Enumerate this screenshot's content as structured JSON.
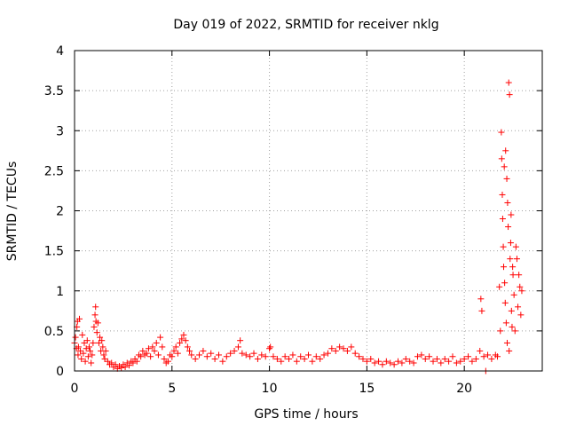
{
  "chart_data": {
    "type": "scatter",
    "title": "Day 019 of 2022, SRMTID for receiver nklg",
    "xlabel": "GPS time / hours",
    "ylabel": "SRMTID / TECUs",
    "xlim": [
      0,
      24
    ],
    "ylim": [
      0,
      4
    ],
    "xticks": [
      0,
      5,
      10,
      15,
      20
    ],
    "xtick_labels": [
      "0",
      "5",
      "10",
      "15",
      "20"
    ],
    "yticks": [
      0,
      0.5,
      1,
      1.5,
      2,
      2.5,
      3,
      3.5,
      4
    ],
    "ytick_labels": [
      "0",
      "0.5",
      "1",
      "1.5",
      "2",
      "2.5",
      "3",
      "3.5",
      "4"
    ],
    "grid": true,
    "marker": "+",
    "marker_color": "#ff0000",
    "series": [
      {
        "name": "SRMTID",
        "points": [
          [
            0.0,
            0.35
          ],
          [
            0.05,
            0.42
          ],
          [
            0.1,
            0.28
          ],
          [
            0.12,
            0.55
          ],
          [
            0.15,
            0.62
          ],
          [
            0.18,
            0.2
          ],
          [
            0.2,
            0.3
          ],
          [
            0.25,
            0.65
          ],
          [
            0.3,
            0.25
          ],
          [
            0.35,
            0.15
          ],
          [
            0.4,
            0.45
          ],
          [
            0.45,
            0.22
          ],
          [
            0.5,
            0.35
          ],
          [
            0.55,
            0.12
          ],
          [
            0.6,
            0.28
          ],
          [
            0.65,
            0.38
          ],
          [
            0.7,
            0.18
          ],
          [
            0.75,
            0.3
          ],
          [
            0.8,
            0.25
          ],
          [
            0.85,
            0.1
          ],
          [
            0.9,
            0.2
          ],
          [
            0.95,
            0.35
          ],
          [
            1.0,
            0.55
          ],
          [
            1.05,
            0.7
          ],
          [
            1.08,
            0.8
          ],
          [
            1.1,
            0.62
          ],
          [
            1.15,
            0.48
          ],
          [
            1.2,
            0.6
          ],
          [
            1.25,
            0.35
          ],
          [
            1.3,
            0.42
          ],
          [
            1.35,
            0.25
          ],
          [
            1.4,
            0.38
          ],
          [
            1.45,
            0.3
          ],
          [
            1.5,
            0.2
          ],
          [
            1.55,
            0.15
          ],
          [
            1.6,
            0.25
          ],
          [
            1.7,
            0.12
          ],
          [
            1.8,
            0.08
          ],
          [
            1.9,
            0.1
          ],
          [
            2.0,
            0.05
          ],
          [
            2.1,
            0.08
          ],
          [
            2.2,
            0.03
          ],
          [
            2.3,
            0.06
          ],
          [
            2.4,
            0.04
          ],
          [
            2.5,
            0.08
          ],
          [
            2.6,
            0.05
          ],
          [
            2.7,
            0.1
          ],
          [
            2.8,
            0.07
          ],
          [
            2.9,
            0.12
          ],
          [
            3.0,
            0.1
          ],
          [
            3.1,
            0.15
          ],
          [
            3.2,
            0.12
          ],
          [
            3.3,
            0.2
          ],
          [
            3.4,
            0.18
          ],
          [
            3.5,
            0.25
          ],
          [
            3.6,
            0.2
          ],
          [
            3.7,
            0.22
          ],
          [
            3.8,
            0.28
          ],
          [
            3.9,
            0.18
          ],
          [
            4.0,
            0.3
          ],
          [
            4.1,
            0.25
          ],
          [
            4.2,
            0.35
          ],
          [
            4.3,
            0.2
          ],
          [
            4.4,
            0.42
          ],
          [
            4.5,
            0.3
          ],
          [
            4.6,
            0.15
          ],
          [
            4.7,
            0.1
          ],
          [
            4.8,
            0.12
          ],
          [
            4.9,
            0.2
          ],
          [
            5.0,
            0.18
          ],
          [
            5.1,
            0.25
          ],
          [
            5.2,
            0.3
          ],
          [
            5.3,
            0.22
          ],
          [
            5.4,
            0.35
          ],
          [
            5.5,
            0.4
          ],
          [
            5.6,
            0.45
          ],
          [
            5.7,
            0.38
          ],
          [
            5.8,
            0.3
          ],
          [
            5.9,
            0.25
          ],
          [
            6.0,
            0.2
          ],
          [
            6.2,
            0.15
          ],
          [
            6.4,
            0.2
          ],
          [
            6.6,
            0.25
          ],
          [
            6.8,
            0.18
          ],
          [
            7.0,
            0.22
          ],
          [
            7.2,
            0.15
          ],
          [
            7.4,
            0.2
          ],
          [
            7.6,
            0.12
          ],
          [
            7.8,
            0.18
          ],
          [
            8.0,
            0.22
          ],
          [
            8.2,
            0.25
          ],
          [
            8.4,
            0.3
          ],
          [
            8.5,
            0.38
          ],
          [
            8.6,
            0.22
          ],
          [
            8.8,
            0.2
          ],
          [
            9.0,
            0.18
          ],
          [
            9.2,
            0.22
          ],
          [
            9.4,
            0.15
          ],
          [
            9.6,
            0.2
          ],
          [
            9.8,
            0.18
          ],
          [
            10.0,
            0.28
          ],
          [
            10.05,
            0.3
          ],
          [
            10.2,
            0.18
          ],
          [
            10.4,
            0.15
          ],
          [
            10.6,
            0.12
          ],
          [
            10.8,
            0.18
          ],
          [
            11.0,
            0.15
          ],
          [
            11.2,
            0.2
          ],
          [
            11.4,
            0.12
          ],
          [
            11.6,
            0.18
          ],
          [
            11.8,
            0.15
          ],
          [
            12.0,
            0.2
          ],
          [
            12.2,
            0.12
          ],
          [
            12.4,
            0.18
          ],
          [
            12.6,
            0.15
          ],
          [
            12.8,
            0.2
          ],
          [
            13.0,
            0.22
          ],
          [
            13.2,
            0.28
          ],
          [
            13.4,
            0.25
          ],
          [
            13.6,
            0.3
          ],
          [
            13.8,
            0.28
          ],
          [
            14.0,
            0.25
          ],
          [
            14.2,
            0.3
          ],
          [
            14.4,
            0.22
          ],
          [
            14.6,
            0.18
          ],
          [
            14.8,
            0.15
          ],
          [
            15.0,
            0.12
          ],
          [
            15.2,
            0.15
          ],
          [
            15.4,
            0.1
          ],
          [
            15.6,
            0.12
          ],
          [
            15.8,
            0.08
          ],
          [
            16.0,
            0.12
          ],
          [
            16.2,
            0.1
          ],
          [
            16.4,
            0.08
          ],
          [
            16.6,
            0.12
          ],
          [
            16.8,
            0.1
          ],
          [
            17.0,
            0.15
          ],
          [
            17.2,
            0.12
          ],
          [
            17.4,
            0.1
          ],
          [
            17.6,
            0.18
          ],
          [
            17.8,
            0.2
          ],
          [
            18.0,
            0.15
          ],
          [
            18.2,
            0.18
          ],
          [
            18.4,
            0.12
          ],
          [
            18.6,
            0.15
          ],
          [
            18.8,
            0.1
          ],
          [
            19.0,
            0.15
          ],
          [
            19.2,
            0.12
          ],
          [
            19.4,
            0.18
          ],
          [
            19.6,
            0.1
          ],
          [
            19.8,
            0.12
          ],
          [
            20.0,
            0.15
          ],
          [
            20.2,
            0.18
          ],
          [
            20.4,
            0.12
          ],
          [
            20.6,
            0.15
          ],
          [
            20.8,
            0.25
          ],
          [
            20.85,
            0.9
          ],
          [
            20.9,
            0.75
          ],
          [
            21.0,
            0.18
          ],
          [
            21.1,
            0.0
          ],
          [
            21.2,
            0.2
          ],
          [
            21.4,
            0.15
          ],
          [
            21.6,
            0.2
          ],
          [
            21.7,
            0.18
          ],
          [
            21.8,
            1.05
          ],
          [
            21.85,
            0.5
          ],
          [
            21.9,
            2.98
          ],
          [
            21.92,
            2.65
          ],
          [
            21.95,
            2.2
          ],
          [
            21.97,
            1.9
          ],
          [
            22.0,
            1.55
          ],
          [
            22.02,
            1.3
          ],
          [
            22.05,
            2.55
          ],
          [
            22.07,
            1.1
          ],
          [
            22.1,
            0.85
          ],
          [
            22.12,
            2.75
          ],
          [
            22.15,
            0.6
          ],
          [
            22.18,
            2.4
          ],
          [
            22.2,
            0.35
          ],
          [
            22.22,
            2.1
          ],
          [
            22.25,
            1.8
          ],
          [
            22.28,
            3.6
          ],
          [
            22.3,
            0.25
          ],
          [
            22.32,
            3.45
          ],
          [
            22.35,
            1.4
          ],
          [
            22.38,
            1.6
          ],
          [
            22.4,
            1.95
          ],
          [
            22.42,
            0.75
          ],
          [
            22.45,
            0.55
          ],
          [
            22.48,
            1.3
          ],
          [
            22.5,
            1.2
          ],
          [
            22.55,
            0.95
          ],
          [
            22.6,
            0.5
          ],
          [
            22.65,
            1.55
          ],
          [
            22.7,
            1.4
          ],
          [
            22.75,
            0.8
          ],
          [
            22.8,
            1.2
          ],
          [
            22.85,
            1.05
          ],
          [
            22.9,
            0.7
          ],
          [
            22.95,
            1.0
          ]
        ]
      }
    ]
  }
}
